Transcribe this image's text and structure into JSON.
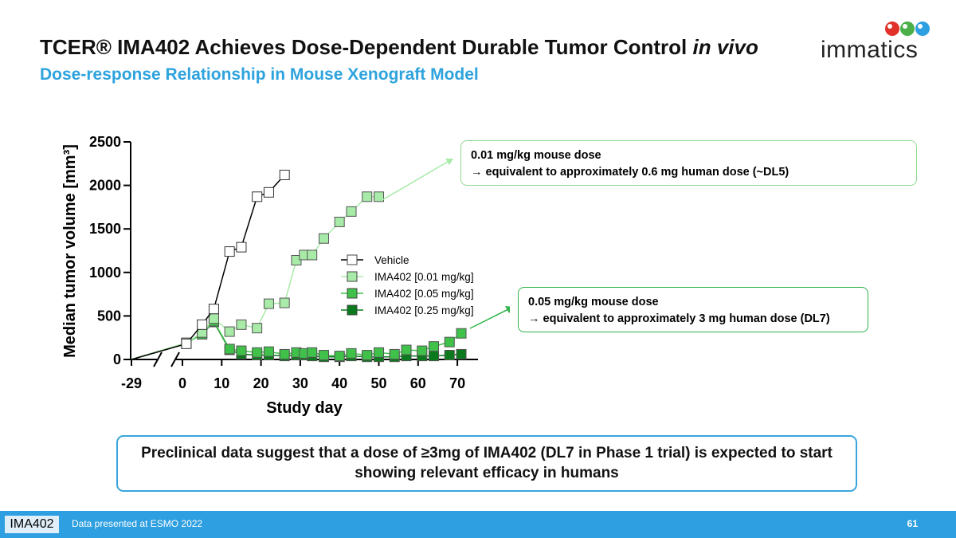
{
  "slide": {
    "title_main": "TCER® IMA402 Achieves Dose-Dependent Durable Tumor Control ",
    "title_italic": "in vivo",
    "subtitle": "Dose-response Relationship in Mouse Xenograft Model",
    "logo_text": "immatics",
    "callout1_line1": "0.01 mg/kg mouse dose",
    "callout1_line2": "→ equivalent to approximately 0.6 mg human dose (~DL5)",
    "callout2_line1": "0.05 mg/kg mouse dose",
    "callout2_line2": "→ equivalent to approximately 3 mg human dose (DL7)",
    "conclusion": "Preclinical data suggest that a dose of ≥3mg of IMA402 (DL7 in Phase 1 trial) is expected to start showing relevant efficacy in humans",
    "footer_tag": "IMA402",
    "footer_note": "Data presented at ESMO 2022",
    "page_number": "61"
  },
  "chart_data": {
    "type": "line",
    "xlabel": "Study day",
    "ylabel": "Median tumor volume [mm³]",
    "ylim": [
      0,
      2500
    ],
    "yticks": [
      0,
      500,
      1000,
      1500,
      2000,
      2500
    ],
    "x_ticks": [
      "-29",
      "0",
      "10",
      "20",
      "30",
      "40",
      "50",
      "60",
      "70"
    ],
    "x_break_after": -29,
    "legend_position": "center",
    "series": [
      {
        "name": "Vehicle",
        "color": "#ffffff",
        "line": "#000000",
        "x": [
          -29,
          1,
          5,
          8,
          12,
          15,
          19,
          22,
          26
        ],
        "y": [
          0,
          180,
          400,
          580,
          1240,
          1290,
          1870,
          1920,
          2120
        ]
      },
      {
        "name": "IMA402 [0.01 mg/kg]",
        "color": "#a8eaa8",
        "line": "#a8eaa8",
        "x": [
          -29,
          1,
          5,
          8,
          12,
          15,
          19,
          22,
          26,
          29,
          31,
          33,
          36,
          40,
          43,
          47,
          50
        ],
        "y": [
          0,
          190,
          310,
          470,
          320,
          400,
          360,
          640,
          650,
          1140,
          1200,
          1200,
          1390,
          1580,
          1700,
          1870,
          1870
        ]
      },
      {
        "name": "IMA402 [0.05 mg/kg]",
        "color": "#3fc14a",
        "line": "#3fc14a",
        "x": [
          -29,
          1,
          5,
          8,
          12,
          15,
          19,
          22,
          26,
          29,
          31,
          33,
          36,
          40,
          43,
          47,
          50,
          54,
          57,
          61,
          64,
          68,
          71
        ],
        "y": [
          0,
          190,
          290,
          440,
          120,
          100,
          80,
          90,
          60,
          80,
          70,
          80,
          50,
          40,
          70,
          50,
          80,
          60,
          110,
          100,
          150,
          200,
          300
        ]
      },
      {
        "name": "IMA402 [0.25 mg/kg]",
        "color": "#0a7a1c",
        "line": "#0a7a1c",
        "x": [
          -29,
          1,
          5,
          8,
          12,
          15,
          19,
          22,
          26,
          29,
          31,
          33,
          36,
          40,
          43,
          47,
          50,
          54,
          57,
          61,
          64,
          68,
          71
        ],
        "y": [
          0,
          190,
          290,
          430,
          110,
          60,
          50,
          50,
          40,
          50,
          50,
          40,
          30,
          30,
          40,
          30,
          30,
          30,
          40,
          40,
          40,
          50,
          60
        ]
      }
    ]
  }
}
